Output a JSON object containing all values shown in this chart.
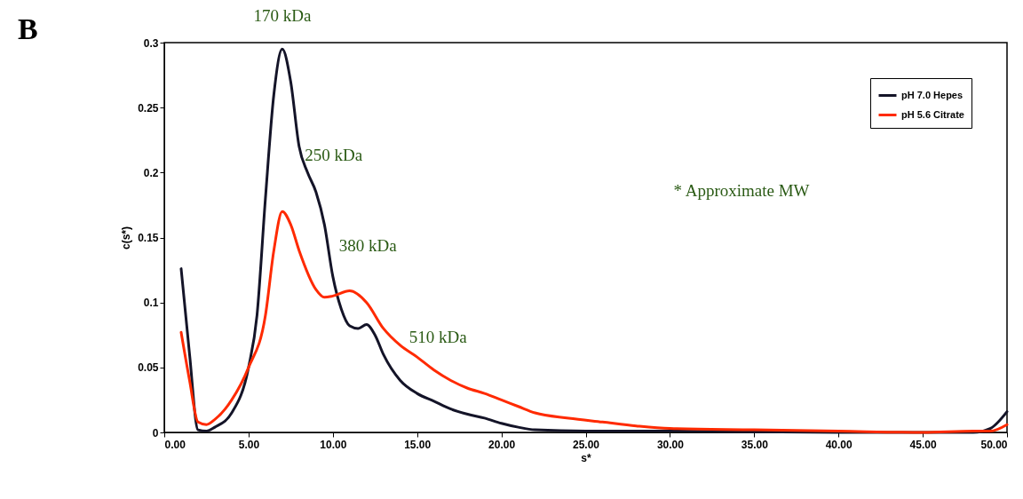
{
  "chart_data": {
    "type": "line",
    "xlabel": "s*",
    "ylabel": "c(s*)",
    "xlim": [
      0,
      50
    ],
    "ylim": [
      0,
      0.3
    ],
    "xticks": [
      {
        "value": 0,
        "label": "0.00"
      },
      {
        "value": 5,
        "label": "5.00"
      },
      {
        "value": 10,
        "label": "10.00"
      },
      {
        "value": 15,
        "label": "15.00"
      },
      {
        "value": 20,
        "label": "20.00"
      },
      {
        "value": 25,
        "label": "25.00"
      },
      {
        "value": 30,
        "label": "30.00"
      },
      {
        "value": 35,
        "label": "35.00"
      },
      {
        "value": 40,
        "label": "40.00"
      },
      {
        "value": 45,
        "label": "45.00"
      },
      {
        "value": 50,
        "label": "50.00"
      }
    ],
    "yticks": [
      0,
      0.05,
      0.1,
      0.15,
      0.2,
      0.25,
      0.3
    ],
    "grid": false,
    "legend": "top right",
    "line_style": "solid",
    "series": [
      {
        "name": "pH 7.0 Hepes",
        "color": "#141428",
        "x": [
          1,
          1.5,
          2,
          2.5,
          3,
          4,
          5,
          5.5,
          6,
          6.5,
          7,
          7.5,
          8,
          8.5,
          9,
          9.5,
          10,
          10.5,
          11,
          11.5,
          12,
          12.5,
          13,
          14,
          15,
          16,
          17,
          18,
          19,
          20,
          21,
          22,
          25,
          30,
          40,
          48,
          49,
          50
        ],
        "values": [
          0.126,
          0.06,
          0.002,
          0.001,
          0.004,
          0.015,
          0.05,
          0.09,
          0.18,
          0.26,
          0.295,
          0.27,
          0.22,
          0.2,
          0.185,
          0.16,
          0.12,
          0.095,
          0.082,
          0.08,
          0.083,
          0.075,
          0.06,
          0.04,
          0.03,
          0.024,
          0.018,
          0.014,
          0.011,
          0.007,
          0.004,
          0.002,
          0.001,
          0.001,
          0,
          0,
          0.003,
          0.016
        ]
      },
      {
        "name": "pH 5.6 Citrate",
        "color": "#ff2a00",
        "x": [
          1,
          1.5,
          2,
          2.5,
          3,
          4,
          5,
          6,
          6.5,
          7,
          7.5,
          8,
          9,
          9.5,
          10,
          11,
          12,
          13,
          14,
          15,
          16,
          17,
          18,
          19,
          20,
          21,
          22,
          24,
          26,
          28,
          30,
          35,
          40,
          45,
          48,
          49,
          50
        ],
        "values": [
          0.077,
          0.04,
          0.008,
          0.006,
          0.01,
          0.025,
          0.05,
          0.09,
          0.14,
          0.17,
          0.16,
          0.14,
          0.11,
          0.104,
          0.105,
          0.109,
          0.1,
          0.08,
          0.067,
          0.058,
          0.048,
          0.04,
          0.034,
          0.03,
          0.025,
          0.02,
          0.015,
          0.011,
          0.008,
          0.005,
          0.003,
          0.002,
          0.001,
          0,
          0.001,
          0.001,
          0.006
        ]
      }
    ],
    "annotations": [
      "B",
      {
        "text": "170 kDa",
        "x": 7,
        "y": 0.295
      },
      {
        "text": "250 kDa",
        "x": 8.5,
        "y": 0.21
      },
      {
        "text": "380 kDa",
        "x": 11,
        "y": 0.109
      },
      {
        "text": "510 kDa",
        "x": 15,
        "y": 0.058
      },
      "* Approximate MW"
    ]
  }
}
